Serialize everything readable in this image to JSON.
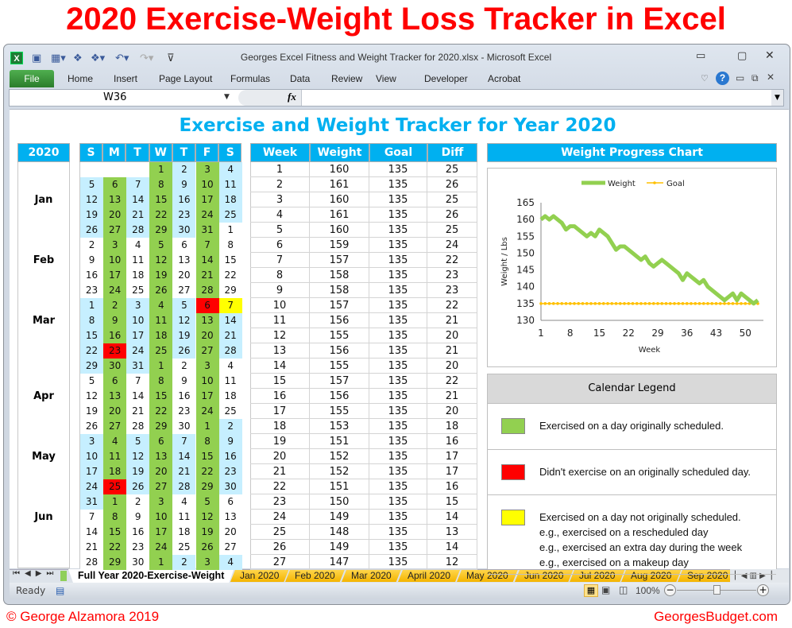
{
  "banner_title": "2020 Exercise-Weight Loss Tracker in Excel",
  "window": {
    "title": "Georges Excel Fitness and Weight Tracker for 2020.xlsx  -  Microsoft Excel"
  },
  "ribbon": {
    "file": "File",
    "tabs": [
      "Home",
      "Insert",
      "Page Layout",
      "Formulas",
      "Data",
      "Review",
      "View",
      "Developer",
      "Acrobat"
    ]
  },
  "formula_bar": {
    "name_box": "W36",
    "fx": "fx",
    "value": ""
  },
  "sheet": {
    "title": "Exercise and Weight Tracker for Year 2020",
    "year_header": "2020",
    "day_headers": [
      "S",
      "M",
      "T",
      "W",
      "T",
      "F",
      "S"
    ],
    "months": [
      "Jan",
      "Feb",
      "Mar",
      "Apr",
      "May",
      "Jun"
    ],
    "calendar_colors": {
      "g": "#92d050",
      "b": "#c6efff",
      "w": "#ffffff",
      "r": "#ff0000",
      "y": "#ffff00",
      "e": "#ffffff"
    },
    "calendar_weeks": [
      {
        "days": [
          "",
          "",
          "",
          "1",
          "2",
          "3",
          "4"
        ],
        "status": "eeegbgb"
      },
      {
        "days": [
          "5",
          "6",
          "7",
          "8",
          "9",
          "10",
          "11"
        ],
        "status": "bgbgbgb"
      },
      {
        "days": [
          "12",
          "13",
          "14",
          "15",
          "16",
          "17",
          "18"
        ],
        "status": "bgbgbgb"
      },
      {
        "days": [
          "19",
          "20",
          "21",
          "22",
          "23",
          "24",
          "25"
        ],
        "status": "bgbgbgb"
      },
      {
        "days": [
          "26",
          "27",
          "28",
          "29",
          "30",
          "31",
          "1"
        ],
        "status": "bgbgbgw"
      },
      {
        "days": [
          "2",
          "3",
          "4",
          "5",
          "6",
          "7",
          "8"
        ],
        "status": "wgwgwgw"
      },
      {
        "days": [
          "9",
          "10",
          "11",
          "12",
          "13",
          "14",
          "15"
        ],
        "status": "wgwgwgw"
      },
      {
        "days": [
          "16",
          "17",
          "18",
          "19",
          "20",
          "21",
          "22"
        ],
        "status": "wgwgwgw"
      },
      {
        "days": [
          "23",
          "24",
          "25",
          "26",
          "27",
          "28",
          "29"
        ],
        "status": "wgwgwgw"
      },
      {
        "days": [
          "1",
          "2",
          "3",
          "4",
          "5",
          "6",
          "7"
        ],
        "status": "bgbgbry"
      },
      {
        "days": [
          "8",
          "9",
          "10",
          "11",
          "12",
          "13",
          "14"
        ],
        "status": "bgbgbgb"
      },
      {
        "days": [
          "15",
          "16",
          "17",
          "18",
          "19",
          "20",
          "21"
        ],
        "status": "bgbgbgb"
      },
      {
        "days": [
          "22",
          "23",
          "24",
          "25",
          "26",
          "27",
          "28"
        ],
        "status": "brbgbgb"
      },
      {
        "days": [
          "29",
          "30",
          "31",
          "1",
          "2",
          "3",
          "4"
        ],
        "status": "bgbgwgw"
      },
      {
        "days": [
          "5",
          "6",
          "7",
          "8",
          "9",
          "10",
          "11"
        ],
        "status": "wgwgwgw"
      },
      {
        "days": [
          "12",
          "13",
          "14",
          "15",
          "16",
          "17",
          "18"
        ],
        "status": "wgwgwgw"
      },
      {
        "days": [
          "19",
          "20",
          "21",
          "22",
          "23",
          "24",
          "25"
        ],
        "status": "wgwgwgw"
      },
      {
        "days": [
          "26",
          "27",
          "28",
          "29",
          "30",
          "1",
          "2"
        ],
        "status": "wgwgwgb"
      },
      {
        "days": [
          "3",
          "4",
          "5",
          "6",
          "7",
          "8",
          "9"
        ],
        "status": "bgbgbgb"
      },
      {
        "days": [
          "10",
          "11",
          "12",
          "13",
          "14",
          "15",
          "16"
        ],
        "status": "bgbgbgb"
      },
      {
        "days": [
          "17",
          "18",
          "19",
          "20",
          "21",
          "22",
          "23"
        ],
        "status": "bgbgbgb"
      },
      {
        "days": [
          "24",
          "25",
          "26",
          "27",
          "28",
          "29",
          "30"
        ],
        "status": "brbgbgb"
      },
      {
        "days": [
          "31",
          "1",
          "2",
          "3",
          "4",
          "5",
          "6"
        ],
        "status": "bgwgwgw"
      },
      {
        "days": [
          "7",
          "8",
          "9",
          "10",
          "11",
          "12",
          "13"
        ],
        "status": "wgwgwgw"
      },
      {
        "days": [
          "14",
          "15",
          "16",
          "17",
          "18",
          "19",
          "20"
        ],
        "status": "wgwgwgw"
      },
      {
        "days": [
          "21",
          "22",
          "23",
          "24",
          "25",
          "26",
          "27"
        ],
        "status": "wgwgwgw"
      },
      {
        "days": [
          "28",
          "29",
          "30",
          "1",
          "2",
          "3",
          "4"
        ],
        "status": "wgwgbgb"
      }
    ],
    "weight_table": {
      "headers": [
        "Week",
        "Weight",
        "Goal",
        "Diff"
      ],
      "rows": [
        [
          1,
          160,
          135,
          25
        ],
        [
          2,
          161,
          135,
          26
        ],
        [
          3,
          160,
          135,
          25
        ],
        [
          4,
          161,
          135,
          26
        ],
        [
          5,
          160,
          135,
          25
        ],
        [
          6,
          159,
          135,
          24
        ],
        [
          7,
          157,
          135,
          22
        ],
        [
          8,
          158,
          135,
          23
        ],
        [
          9,
          158,
          135,
          23
        ],
        [
          10,
          157,
          135,
          22
        ],
        [
          11,
          156,
          135,
          21
        ],
        [
          12,
          155,
          135,
          20
        ],
        [
          13,
          156,
          135,
          21
        ],
        [
          14,
          155,
          135,
          20
        ],
        [
          15,
          157,
          135,
          22
        ],
        [
          16,
          156,
          135,
          21
        ],
        [
          17,
          155,
          135,
          20
        ],
        [
          18,
          153,
          135,
          18
        ],
        [
          19,
          151,
          135,
          16
        ],
        [
          20,
          152,
          135,
          17
        ],
        [
          21,
          152,
          135,
          17
        ],
        [
          22,
          151,
          135,
          16
        ],
        [
          23,
          150,
          135,
          15
        ],
        [
          24,
          149,
          135,
          14
        ],
        [
          25,
          148,
          135,
          13
        ],
        [
          26,
          149,
          135,
          14
        ],
        [
          27,
          147,
          135,
          12
        ]
      ]
    },
    "chart_header": "Weight Progress Chart",
    "legend": {
      "title": "Calendar Legend",
      "items": [
        {
          "color": "#92d050",
          "lines": [
            "Exercised on a day originally scheduled."
          ]
        },
        {
          "color": "#ff0000",
          "lines": [
            "Didn't exercise on an originally scheduled day."
          ]
        },
        {
          "color": "#ffff00",
          "lines": [
            "Exercised on a day not originally scheduled.",
            "e.g., exercised on a rescheduled day",
            "e.g., exercised an extra day during the week",
            "e.g., exercised on a makeup day"
          ]
        }
      ]
    }
  },
  "chart_data": {
    "type": "line",
    "xlabel": "Week",
    "ylabel": "Weight / Lbs",
    "ylim": [
      130,
      165
    ],
    "yticks": [
      130,
      135,
      140,
      145,
      150,
      155,
      160,
      165
    ],
    "xticks": [
      1,
      8,
      15,
      22,
      29,
      36,
      43,
      50
    ],
    "xlim": [
      1,
      53
    ],
    "legend": "top",
    "grid": false,
    "series": [
      {
        "name": "Weight",
        "color": "#92d050",
        "values": [
          160,
          161,
          160,
          161,
          160,
          159,
          157,
          158,
          158,
          157,
          156,
          155,
          156,
          155,
          157,
          156,
          155,
          153,
          151,
          152,
          152,
          151,
          150,
          149,
          148,
          149,
          147,
          146,
          147,
          148,
          147,
          146,
          145,
          144,
          142,
          144,
          143,
          142,
          141,
          142,
          140,
          139,
          138,
          137,
          136,
          137,
          138,
          136,
          138,
          137,
          136,
          135,
          136
        ]
      },
      {
        "name": "Goal",
        "color": "#ffc000",
        "values": [
          135,
          135,
          135,
          135,
          135,
          135,
          135,
          135,
          135,
          135,
          135,
          135,
          135,
          135,
          135,
          135,
          135,
          135,
          135,
          135,
          135,
          135,
          135,
          135,
          135,
          135,
          135,
          135,
          135,
          135,
          135,
          135,
          135,
          135,
          135,
          135,
          135,
          135,
          135,
          135,
          135,
          135,
          135,
          135,
          135,
          135,
          135,
          135,
          135,
          135,
          135,
          135,
          135
        ]
      }
    ]
  },
  "sheet_tabs": {
    "active": "Full Year 2020-Exercise-Weight",
    "others": [
      "Jan 2020",
      "Feb 2020",
      "Mar 2020",
      "April 2020",
      "May 2020",
      "Jun 2020",
      "Jul 2020",
      "Aug 2020",
      "Sep 2020"
    ]
  },
  "status": {
    "ready": "Ready",
    "zoom": "100%"
  },
  "footer": {
    "copyright": "© George Alzamora 2019",
    "site": "GeorgesBudget.com"
  }
}
